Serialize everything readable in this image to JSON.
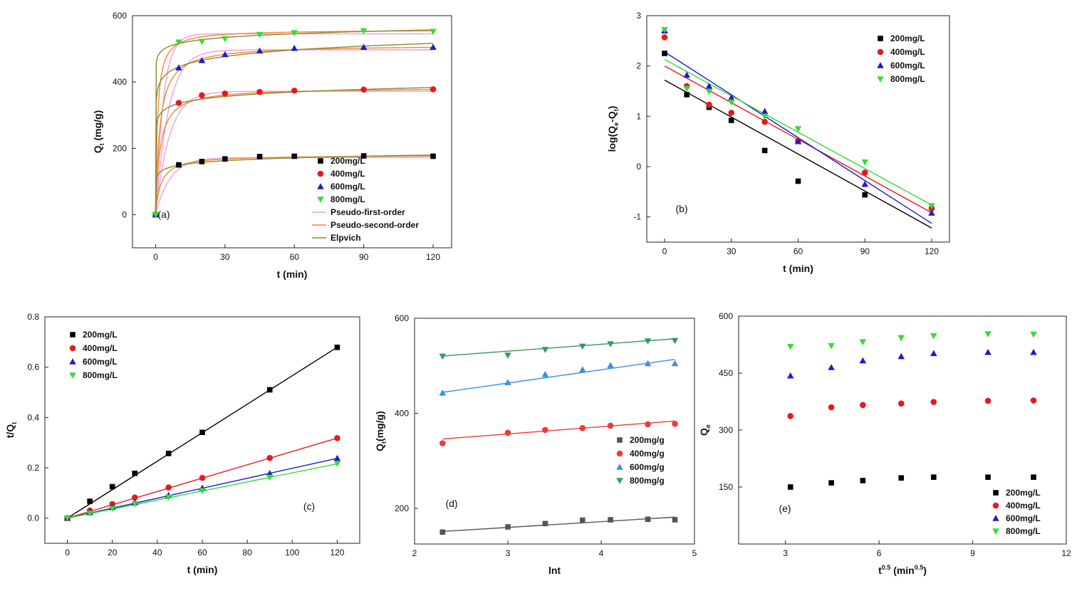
{
  "figure_title": "",
  "chart_data": [
    {
      "id": "a",
      "type": "scatter",
      "panel_label": "(a)",
      "xlabel": "t (min)",
      "ylabel": "Q_t (mg/g)",
      "ylabel_main": "Q",
      "ylabel_sub": "t",
      "ylabel_rest": " (mg/g)",
      "xlim": [
        -10,
        128
      ],
      "ylim": [
        -100,
        600
      ],
      "xticks": [
        0,
        30,
        60,
        90,
        120
      ],
      "yticks": [
        0,
        200,
        400,
        600
      ],
      "legend_position": "lower-right",
      "series": [
        {
          "name": "200mg/L",
          "color": "#000000",
          "marker": "square",
          "x": [
            0,
            10,
            20,
            30,
            45,
            60,
            90,
            120
          ],
          "y": [
            0,
            150,
            160,
            168,
            175,
            176,
            177,
            176
          ]
        },
        {
          "name": "400mg/L",
          "color": "#e8191c",
          "marker": "circle",
          "x": [
            0,
            10,
            20,
            30,
            45,
            60,
            90,
            120
          ],
          "y": [
            0,
            337,
            360,
            365,
            370,
            374,
            377,
            378
          ]
        },
        {
          "name": "600mg/L",
          "color": "#1c1ccf",
          "marker": "triangle-up",
          "x": [
            0,
            10,
            20,
            30,
            45,
            60,
            90,
            120
          ],
          "y": [
            0,
            443,
            465,
            483,
            494,
            502,
            505,
            505
          ]
        },
        {
          "name": "800mg/L",
          "color": "#33dd33",
          "marker": "triangle-down",
          "x": [
            0,
            10,
            20,
            30,
            45,
            60,
            90,
            120
          ],
          "y": [
            0,
            520,
            522,
            530,
            543,
            548,
            554,
            552
          ]
        }
      ],
      "fits": [
        {
          "name": "Pseudo-first-order",
          "color": "#f49ae6",
          "model": "pfo",
          "params": [
            [
              172,
              0.16
            ],
            [
              372,
              0.17
            ],
            [
              497,
              0.18
            ],
            [
              545,
              0.3
            ]
          ]
        },
        {
          "name": "Pseudo-second-order",
          "color": "#f08a30",
          "model": "pso",
          "params": [
            [
              180,
              0.0025
            ],
            [
              383,
              0.0014
            ],
            [
              512,
              0.0011
            ],
            [
              558,
              0.0022
            ]
          ]
        },
        {
          "name": "Elpvich",
          "color": "#8a8a30",
          "model": "elovich",
          "params": [
            [
              120,
              12.5
            ],
            [
              290,
              19.5
            ],
            [
              380,
              28.5
            ],
            [
              478,
              16.5
            ]
          ]
        }
      ]
    },
    {
      "id": "b",
      "type": "scatter",
      "panel_label": "(b)",
      "xlabel": "t (min)",
      "ylabel": "log(Q_e-Q_t)",
      "xlim": [
        -8,
        128
      ],
      "ylim": [
        -1.5,
        3
      ],
      "xticks": [
        0,
        30,
        60,
        90,
        120
      ],
      "yticks": [
        -1,
        0,
        1,
        2,
        3
      ],
      "legend_position": "top-right",
      "series": [
        {
          "name": "200mg/L",
          "color": "#000000",
          "marker": "square",
          "x": [
            0,
            10,
            20,
            30,
            45,
            60,
            90
          ],
          "y": [
            2.25,
            1.43,
            1.18,
            0.92,
            0.32,
            -0.29,
            -0.56
          ],
          "fit": [
            1.72,
            -0.0245
          ]
        },
        {
          "name": "400mg/L",
          "color": "#e8191c",
          "marker": "circle",
          "x": [
            0,
            10,
            20,
            30,
            45,
            60,
            90,
            120
          ],
          "y": [
            2.57,
            1.6,
            1.23,
            1.07,
            0.89,
            0.51,
            -0.12,
            -0.83
          ],
          "fit": [
            2.0,
            -0.0243
          ]
        },
        {
          "name": "600mg/L",
          "color": "#1c1ccf",
          "marker": "triangle-up",
          "x": [
            0,
            10,
            20,
            30,
            45,
            60,
            90,
            120
          ],
          "y": [
            2.7,
            1.82,
            1.6,
            1.37,
            1.1,
            0.5,
            -0.35,
            -0.92
          ],
          "fit": [
            2.28,
            -0.0284
          ]
        },
        {
          "name": "800mg/L",
          "color": "#33dd33",
          "marker": "triangle-down",
          "x": [
            0,
            10,
            20,
            30,
            45,
            60,
            90,
            120
          ],
          "y": [
            2.72,
            1.55,
            1.49,
            1.28,
            1.0,
            0.75,
            0.09,
            -0.78
          ],
          "fit": [
            2.13,
            -0.0241
          ]
        }
      ]
    },
    {
      "id": "c",
      "type": "scatter",
      "panel_label": "(c)",
      "xlabel": "t (min)",
      "ylabel": "t/Q_t",
      "xlim": [
        -10,
        130
      ],
      "ylim": [
        -0.1,
        0.8
      ],
      "xticks": [
        0,
        20,
        40,
        60,
        80,
        100,
        120
      ],
      "yticks": [
        0.0,
        0.2,
        0.4,
        0.6,
        0.8
      ],
      "ytick_labels": [
        "0.0",
        "0.2",
        "0.4",
        "0.6",
        "0.8"
      ],
      "legend_position": "top-left",
      "series": [
        {
          "name": "200mg/L",
          "color": "#000000",
          "marker": "square",
          "x": [
            0,
            10,
            20,
            30,
            45,
            60,
            90,
            120
          ],
          "y": [
            0,
            0.067,
            0.125,
            0.178,
            0.257,
            0.341,
            0.51,
            0.679
          ],
          "fit": [
            0,
            0.00566
          ]
        },
        {
          "name": "400mg/L",
          "color": "#e8191c",
          "marker": "circle",
          "x": [
            0,
            10,
            20,
            30,
            45,
            60,
            90,
            120
          ],
          "y": [
            0,
            0.03,
            0.056,
            0.082,
            0.122,
            0.16,
            0.239,
            0.318
          ],
          "fit": [
            0,
            0.00265
          ]
        },
        {
          "name": "600mg/L",
          "color": "#1c1ccf",
          "marker": "triangle-up",
          "x": [
            0,
            10,
            20,
            30,
            45,
            60,
            90,
            120
          ],
          "y": [
            0,
            0.023,
            0.043,
            0.062,
            0.091,
            0.12,
            0.178,
            0.238
          ],
          "fit": [
            0,
            0.00198
          ]
        },
        {
          "name": "800mg/L",
          "color": "#33dd33",
          "marker": "triangle-down",
          "x": [
            0,
            10,
            20,
            30,
            45,
            60,
            90,
            120
          ],
          "y": [
            0,
            0.019,
            0.038,
            0.057,
            0.083,
            0.109,
            0.162,
            0.217
          ],
          "fit": [
            0,
            0.0018
          ]
        }
      ]
    },
    {
      "id": "d",
      "type": "scatter",
      "panel_label": "(d)",
      "xlabel": "lnt",
      "ylabel": "Q_t(mg/g)",
      "ylabel_main": "Q",
      "ylabel_sub": "t",
      "ylabel_rest": "(mg/g)",
      "xlim": [
        2,
        5
      ],
      "ylim": [
        125,
        600
      ],
      "xticks": [
        2,
        3,
        4,
        5
      ],
      "yticks": [
        200,
        400,
        600
      ],
      "legend_position": "lower-right",
      "series": [
        {
          "name": "200mg/g",
          "color": "#555555",
          "marker": "square",
          "x": [
            2.3,
            3.0,
            3.4,
            3.8,
            4.1,
            4.5,
            4.79
          ],
          "y": [
            150,
            161,
            168,
            175,
            176,
            177,
            176
          ],
          "fit": [
            123.6,
            12.1
          ]
        },
        {
          "name": "400mg/g",
          "color": "#f03a3a",
          "marker": "circle",
          "x": [
            2.3,
            3.0,
            3.4,
            3.8,
            4.1,
            4.5,
            4.79
          ],
          "y": [
            337,
            359,
            365,
            369,
            374,
            377,
            378
          ],
          "fit": [
            311,
            15.2
          ]
        },
        {
          "name": "600mg/g",
          "color": "#3a8ee8",
          "marker": "triangle-up",
          "x": [
            2.3,
            3.0,
            3.4,
            3.8,
            4.1,
            4.5,
            4.79
          ],
          "y": [
            443,
            465,
            482,
            492,
            501,
            505,
            505
          ],
          "fit": [
            380,
            27.9
          ]
        },
        {
          "name": "800mg/g",
          "color": "#2f9d5a",
          "marker": "triangle-down",
          "x": [
            2.3,
            3.0,
            3.4,
            3.8,
            4.1,
            4.5,
            4.79
          ],
          "y": [
            520,
            522,
            534,
            541,
            546,
            552,
            553
          ],
          "fit": [
            487,
            14.6
          ]
        }
      ]
    },
    {
      "id": "e",
      "type": "scatter",
      "panel_label": "(e)",
      "xlabel": "t^0.5 (min^0.5)",
      "ylabel": "Q_e",
      "xlim": [
        1.5,
        12
      ],
      "ylim": [
        0,
        600
      ],
      "xticks": [
        3,
        6,
        9,
        12
      ],
      "yticks": [
        150,
        300,
        450,
        600
      ],
      "legend_position": "lower-right",
      "series": [
        {
          "name": "200mg/L",
          "color": "#000000",
          "marker": "square",
          "x": [
            3.16,
            4.47,
            5.48,
            6.71,
            7.75,
            9.49,
            10.95
          ],
          "y": [
            150,
            161,
            167,
            174,
            176,
            176,
            176
          ]
        },
        {
          "name": "400mg/L",
          "color": "#e8191c",
          "marker": "circle",
          "x": [
            3.16,
            4.47,
            5.48,
            6.71,
            7.75,
            9.49,
            10.95
          ],
          "y": [
            337,
            360,
            366,
            370,
            374,
            377,
            378
          ]
        },
        {
          "name": "600mg/L",
          "color": "#1c1ccf",
          "marker": "triangle-up",
          "x": [
            3.16,
            4.47,
            5.48,
            6.71,
            7.75,
            9.49,
            10.95
          ],
          "y": [
            443,
            465,
            483,
            494,
            502,
            505,
            505
          ]
        },
        {
          "name": "800mg/L",
          "color": "#33dd33",
          "marker": "triangle-down",
          "x": [
            3.16,
            4.47,
            5.48,
            6.71,
            7.75,
            9.49,
            10.95
          ],
          "y": [
            520,
            522,
            532,
            543,
            548,
            553,
            552
          ]
        }
      ]
    }
  ]
}
